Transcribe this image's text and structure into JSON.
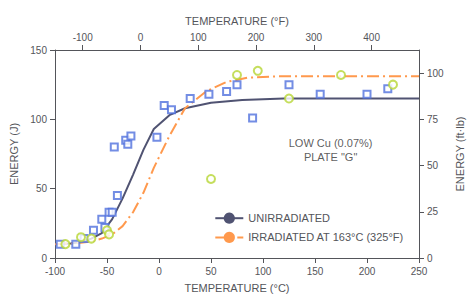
{
  "chart_data": {
    "type": "scatter",
    "xlabel": "TEMPERATURE (°C)",
    "x2label": "TEMPERATURE (°F)",
    "ylabel": "ENERGY (J)",
    "y2label": "ENERGY (ft·lb)",
    "xlim": [
      -100,
      250
    ],
    "xticks": [
      -100,
      -50,
      0,
      50,
      100,
      150,
      200,
      250
    ],
    "x2lim": [
      -148,
      482
    ],
    "x2ticks": [
      -100,
      0,
      100,
      200,
      300,
      400
    ],
    "ylim": [
      0,
      150
    ],
    "yticks": [
      0,
      50,
      100,
      150
    ],
    "y2lim": [
      0,
      112.5
    ],
    "y2ticks": [
      0,
      25,
      50,
      75,
      100
    ],
    "grid": false,
    "legend": "lower right",
    "annotations": [
      {
        "text": "LOW Cu (0.07%)\nPLATE \"G\"",
        "x": 165,
        "y": 78
      }
    ],
    "series": [
      {
        "type": "scatter",
        "marker": "square",
        "x": [
          -95,
          -80,
          -72,
          -63,
          -55,
          -52,
          -48,
          -45,
          -43,
          -40,
          -32,
          -30,
          -27,
          -2,
          5,
          12,
          30,
          48,
          65,
          75,
          90,
          125,
          155,
          200,
          220
        ],
        "values": [
          10,
          10,
          14,
          20,
          28,
          22,
          33,
          33,
          80,
          45,
          85,
          82,
          88,
          87,
          110,
          107,
          115,
          118,
          120,
          125,
          101,
          125,
          118,
          118,
          122
        ]
      },
      {
        "type": "scatter",
        "marker": "circle",
        "x": [
          -90,
          -75,
          -65,
          -50,
          -48,
          50,
          75,
          95,
          125,
          175,
          225
        ],
        "values": [
          10,
          15,
          14,
          20,
          17,
          57,
          132,
          135,
          115,
          132,
          125
        ]
      },
      {
        "name": "UNIRRADIATED",
        "type": "line",
        "line_style": "solid",
        "x": [
          -100,
          -85,
          -75,
          -65,
          -55,
          -45,
          -35,
          -25,
          -15,
          -5,
          10,
          25,
          50,
          80,
          120,
          175,
          250
        ],
        "values": [
          10,
          10.5,
          11.5,
          14,
          18,
          28,
          43,
          60,
          78,
          93,
          103,
          108,
          112,
          114,
          115,
          115,
          115
        ]
      },
      {
        "name": "IRRADIATED AT 163°C (325°F)",
        "type": "line",
        "line_style": "dashdot",
        "x": [
          -100,
          -85,
          -75,
          -65,
          -55,
          -45,
          -35,
          -25,
          -15,
          -5,
          10,
          25,
          45,
          65,
          85,
          115,
          155,
          200,
          250
        ],
        "values": [
          10,
          10.5,
          11,
          12,
          14,
          17,
          23,
          33,
          47,
          65,
          88,
          108,
          120,
          127,
          130,
          131,
          131,
          131,
          131
        ]
      }
    ]
  }
}
